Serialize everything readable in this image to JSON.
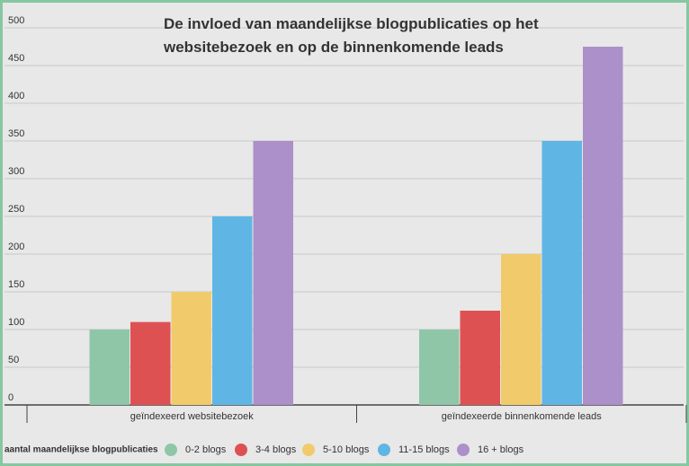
{
  "chart_data": {
    "type": "bar",
    "title": "De invloed van maandelijkse blogpublicaties op het websitebezoek en op de binnenkomende leads",
    "categories": [
      "geïndexeerd websitebezoek",
      "geïndexeerde binnenkomende leads"
    ],
    "legend_title": "aantal maandelijkse blogpublicaties",
    "series": [
      {
        "name": "0-2 blogs",
        "color": "#8fc6a8",
        "values": [
          100,
          100
        ]
      },
      {
        "name": "3-4 blogs",
        "color": "#de5153",
        "values": [
          110,
          125
        ]
      },
      {
        "name": "5-10 blogs",
        "color": "#f1cb6b",
        "values": [
          150,
          200
        ]
      },
      {
        "name": "11-15 blogs",
        "color": "#5fb6e5",
        "values": [
          250,
          350
        ]
      },
      {
        "name": "16 + blogs",
        "color": "#ab90c9",
        "values": [
          350,
          475
        ]
      }
    ],
    "ylim": [
      0,
      500
    ],
    "yticks": [
      0,
      50,
      100,
      150,
      200,
      250,
      300,
      350,
      400,
      450,
      500
    ],
    "grid": true,
    "legend": "bottom"
  }
}
